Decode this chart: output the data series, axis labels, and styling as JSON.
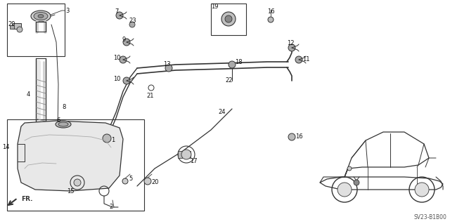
{
  "bg_color": "#ffffff",
  "fig_width": 6.4,
  "fig_height": 3.19,
  "diagram_code_ref": "SV23-B1B00",
  "fr_label": "FR.",
  "lc": "#333333",
  "lw_main": 0.9
}
